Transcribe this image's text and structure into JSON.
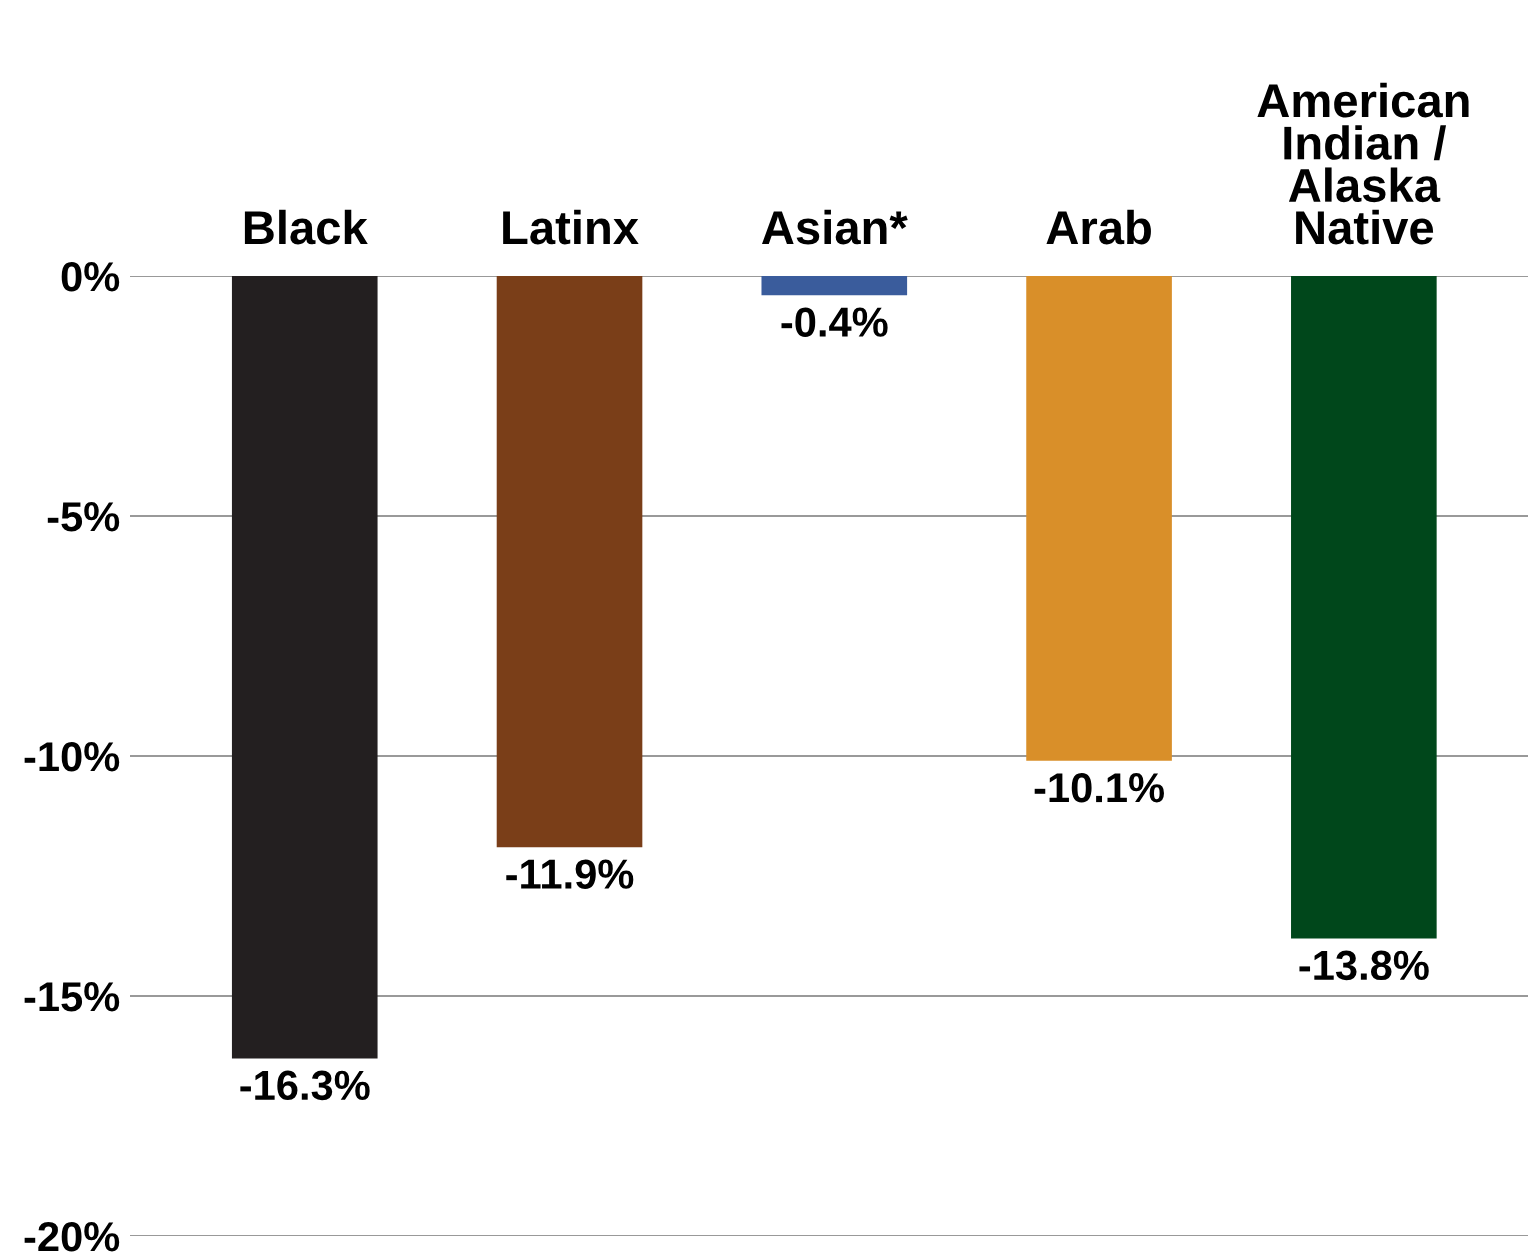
{
  "chart_data": {
    "type": "bar",
    "categories": [
      "Black",
      "Latinx",
      "Asian*",
      "Arab",
      "American\nIndian /\nAlaska\nNative"
    ],
    "values": [
      -16.3,
      -11.9,
      -0.4,
      -10.1,
      -13.8
    ],
    "colors": [
      "#231f20",
      "#7a3e18",
      "#3a5c9c",
      "#d98f29",
      "#00471b"
    ],
    "value_labels": [
      "-16.3%",
      "-11.9%",
      "-0.4%",
      "-10.1%",
      "-13.8%"
    ],
    "ylim": [
      -20,
      0
    ],
    "yticks": [
      {
        "value": 0,
        "label": "0%"
      },
      {
        "value": -5,
        "label": "-5%"
      },
      {
        "value": -10,
        "label": "-10%"
      },
      {
        "value": -15,
        "label": "-15%"
      },
      {
        "value": -20,
        "label": "-20%"
      }
    ],
    "grid": "y"
  }
}
